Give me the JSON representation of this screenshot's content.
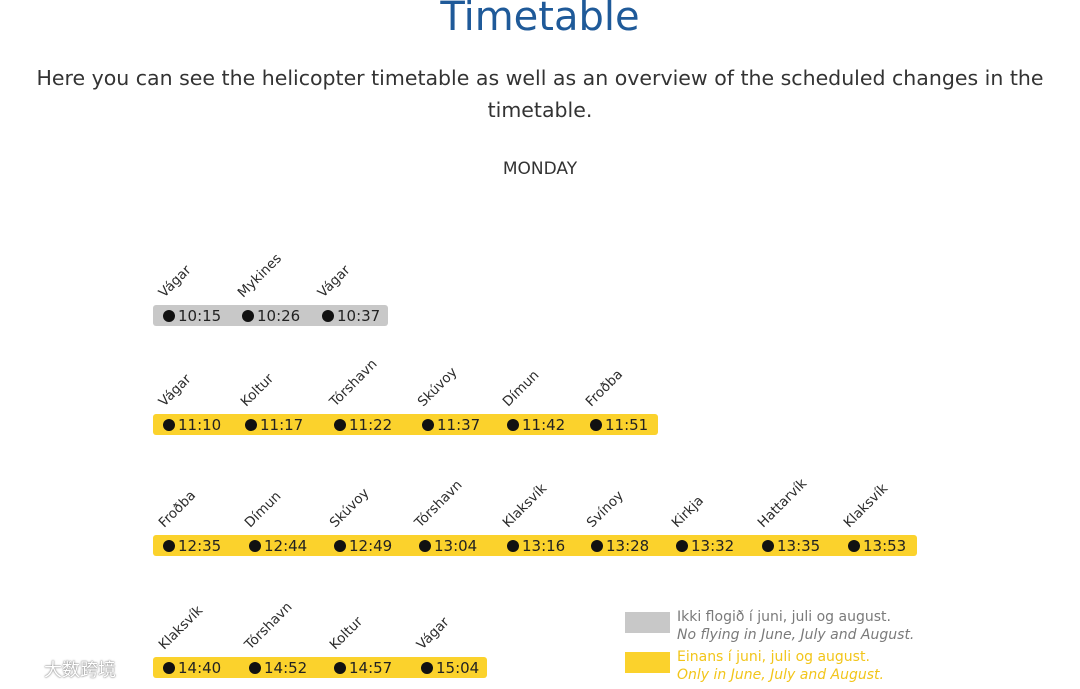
{
  "page": {
    "title": "Timetable",
    "intro": "Here you can see the helicopter timetable as well as an overview of the scheduled changes in the timetable.",
    "day": "MONDAY"
  },
  "colors": {
    "title": "#1f5a99",
    "bar_grey": "#c8c8c8",
    "bar_yellow": "#fbd22c",
    "legend_grey_text": "#7a7a7a",
    "legend_yellow_text": "#f2c51a"
  },
  "routes": [
    {
      "kind": "grey",
      "stops": [
        {
          "name": "Vágar",
          "time": "10:15"
        },
        {
          "name": "Mykines",
          "time": "10:26"
        },
        {
          "name": "Vágar",
          "time": "10:37"
        }
      ]
    },
    {
      "kind": "yellow",
      "stops": [
        {
          "name": "Vágar",
          "time": "11:10"
        },
        {
          "name": "Koltur",
          "time": "11:17"
        },
        {
          "name": "Tórshavn",
          "time": "11:22"
        },
        {
          "name": "Skúvoy",
          "time": "11:37"
        },
        {
          "name": "Dímun",
          "time": "11:42"
        },
        {
          "name": "Froðba",
          "time": "11:51"
        }
      ]
    },
    {
      "kind": "yellow",
      "stops": [
        {
          "name": "Froðba",
          "time": "12:35"
        },
        {
          "name": "Dímun",
          "time": "12:44"
        },
        {
          "name": "Skúvoy",
          "time": "12:49"
        },
        {
          "name": "Tórshavn",
          "time": "13:04"
        },
        {
          "name": "Klaksvík",
          "time": "13:16"
        },
        {
          "name": "Svínoy",
          "time": "13:28"
        },
        {
          "name": "Kirkja",
          "time": "13:32"
        },
        {
          "name": "Hattarvík",
          "time": "13:35"
        },
        {
          "name": "Klaksvík",
          "time": "13:53"
        }
      ]
    },
    {
      "kind": "yellow",
      "stops": [
        {
          "name": "Klaksvík",
          "time": "14:40"
        },
        {
          "name": "Tórshavn",
          "time": "14:52"
        },
        {
          "name": "Koltur",
          "time": "14:57"
        },
        {
          "name": "Vágar",
          "time": "15:04"
        }
      ]
    }
  ],
  "legend": {
    "grey": {
      "line1": "Ikki flogið í juni, juli og august.",
      "line2": "No flying in June, July and August."
    },
    "yellow": {
      "line1": "Einans í juni, juli og august.",
      "line2": "Only in June, July and August."
    }
  },
  "watermark": {
    "text": "大数跨境"
  }
}
